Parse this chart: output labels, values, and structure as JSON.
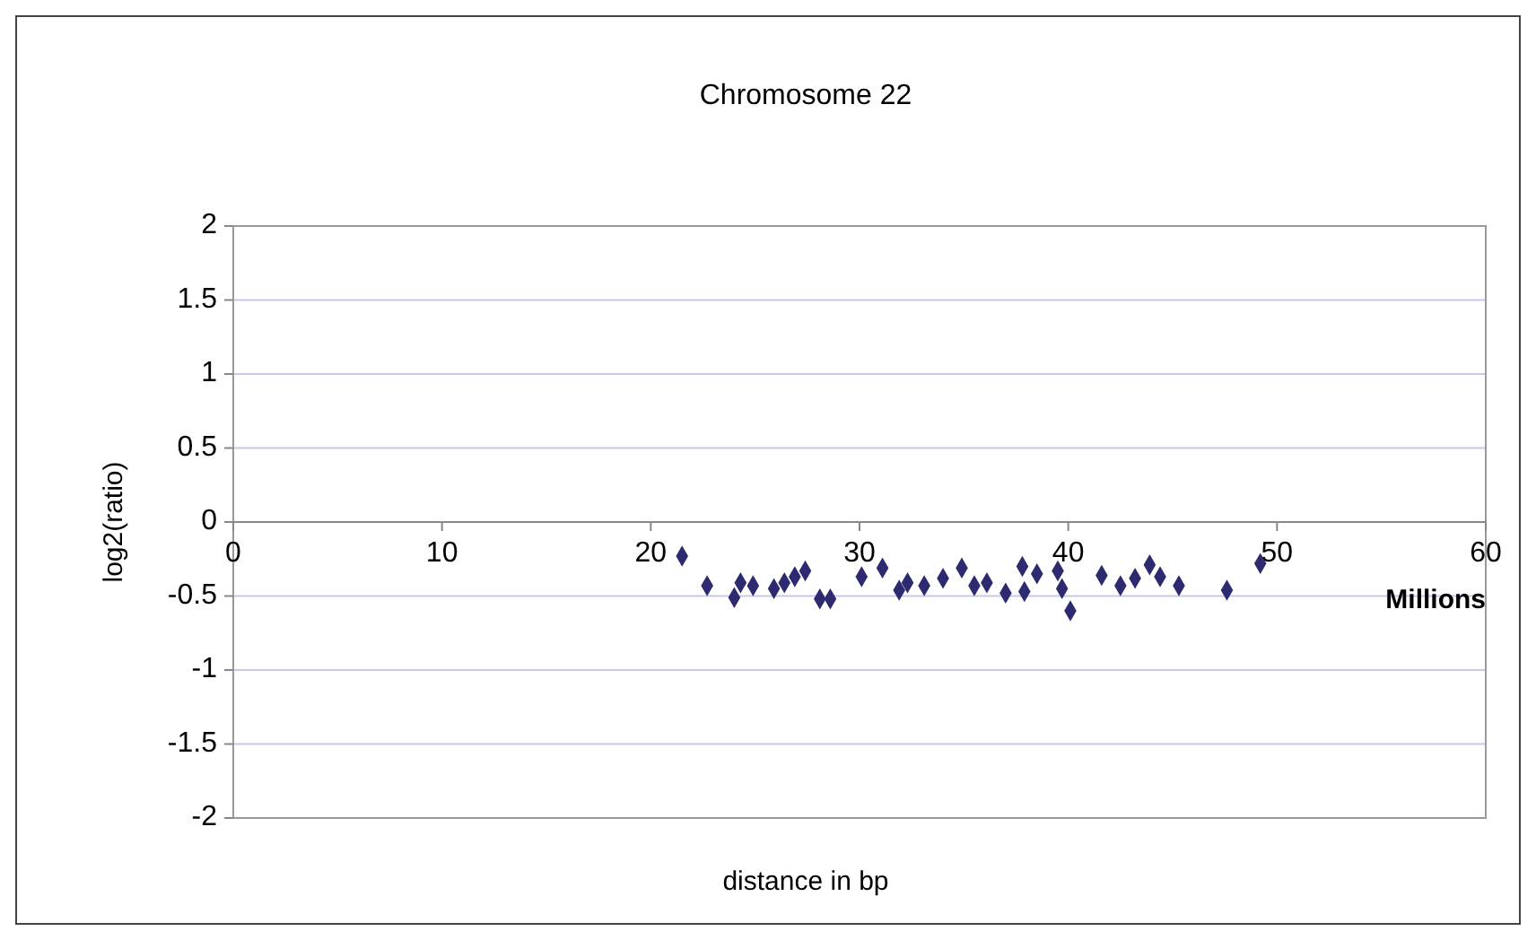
{
  "chart_data": {
    "type": "scatter",
    "title": "Chromosome 22",
    "xlabel": "distance in bp",
    "ylabel": "log2(ratio)",
    "annotations": [
      "Millions"
    ],
    "xlim": [
      0,
      60
    ],
    "xticks": [
      0,
      10,
      20,
      30,
      40,
      50,
      60
    ],
    "ylim": [
      -2,
      2
    ],
    "yticks": [
      -2,
      -1.5,
      -1,
      -0.5,
      0,
      0.5,
      1,
      1.5,
      2
    ],
    "grid": "y",
    "marker": "diamond",
    "series": [
      {
        "color": "#2e2a70",
        "x": [
          21.5,
          22.7,
          24.0,
          24.3,
          24.9,
          25.9,
          26.4,
          26.9,
          27.4,
          28.1,
          28.6,
          30.1,
          31.1,
          31.9,
          32.3,
          33.1,
          34.0,
          34.9,
          35.5,
          36.1,
          37.0,
          37.8,
          37.9,
          38.5,
          39.5,
          39.7,
          40.1,
          41.6,
          42.5,
          43.2,
          43.9,
          44.4,
          45.3,
          47.6,
          49.2
        ],
        "values": [
          -0.23,
          -0.43,
          -0.51,
          -0.41,
          -0.43,
          -0.45,
          -0.41,
          -0.37,
          -0.33,
          -0.52,
          -0.52,
          -0.37,
          -0.31,
          -0.46,
          -0.41,
          -0.43,
          -0.38,
          -0.31,
          -0.43,
          -0.41,
          -0.48,
          -0.3,
          -0.47,
          -0.35,
          -0.33,
          -0.45,
          -0.6,
          -0.36,
          -0.43,
          -0.38,
          -0.29,
          -0.37,
          -0.43,
          -0.46,
          -0.28
        ]
      }
    ]
  }
}
